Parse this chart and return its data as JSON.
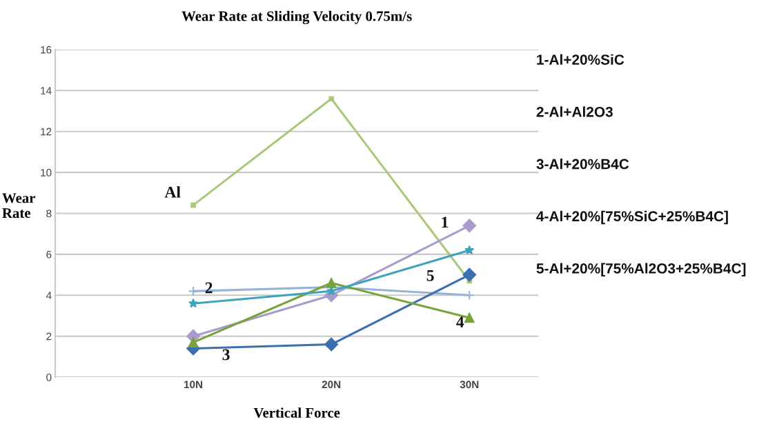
{
  "chart_data": {
    "type": "line",
    "title": "Wear Rate at Sliding Velocity 0.75m/s",
    "xlabel": "Vertical Force",
    "ylabel": "Wear\nRate",
    "categories": [
      "10N",
      "20N",
      "30N"
    ],
    "series": [
      {
        "name": "Al",
        "color": "#a9c97a",
        "marker": "square",
        "values": [
          8.4,
          13.6,
          4.7
        ]
      },
      {
        "name": "1",
        "color": "#a99bcb",
        "marker": "diamond",
        "values": [
          2.0,
          4.0,
          7.4
        ]
      },
      {
        "name": "2",
        "color": "#95b3d7",
        "marker": "cross",
        "values": [
          4.2,
          4.4,
          4.0
        ]
      },
      {
        "name": "3",
        "color": "#3d6fb0",
        "marker": "diamond",
        "values": [
          1.4,
          1.6,
          5.0
        ]
      },
      {
        "name": "4",
        "color": "#77a33a",
        "marker": "triangle",
        "values": [
          1.7,
          4.6,
          2.9
        ]
      },
      {
        "name": "5",
        "color": "#3ea3bc",
        "marker": "star",
        "values": [
          3.6,
          4.2,
          6.2
        ]
      }
    ],
    "ylim": [
      0,
      16
    ],
    "yticks": [
      0,
      2,
      4,
      6,
      8,
      10,
      12,
      14,
      16
    ],
    "grid": "y",
    "legend": false,
    "line_style": "solid",
    "annotations": [
      "1-Al+20%SiC",
      "2-Al+Al2O3",
      "3-Al+20%B4C",
      "4-Al+20%[75%SiC+25%B4C]",
      "5-Al+20%[75%Al2O3+25%B4C]"
    ]
  }
}
